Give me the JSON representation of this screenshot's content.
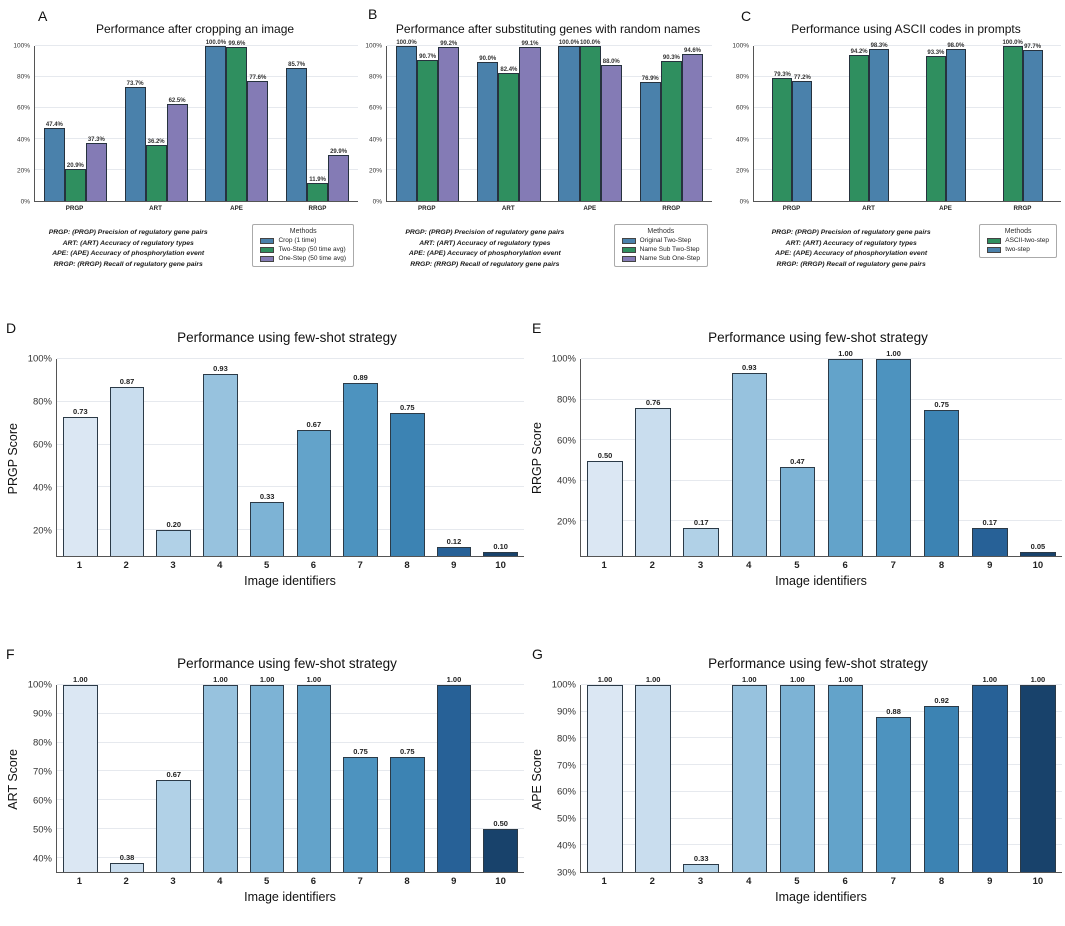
{
  "panels": [
    {
      "letter": "A"
    },
    {
      "letter": "B"
    },
    {
      "letter": "C"
    },
    {
      "letter": "D"
    },
    {
      "letter": "E"
    },
    {
      "letter": "F"
    },
    {
      "letter": "G"
    }
  ],
  "metric_caption_lines": [
    "PRGP: (PRGP) Precision of regulatory gene pairs",
    "ART: (ART) Accuracy of regulatory types",
    "APE: (APE) Accuracy of phosphorylation event",
    "RRGP: (RRGP) Recall of regulatory gene pairs"
  ],
  "chart_data": [
    {
      "id": "A",
      "type": "bar",
      "title": "Performance after cropping an image",
      "categories": [
        "PRGP",
        "ART",
        "APE",
        "RRGP"
      ],
      "series": [
        {
          "name": "Crop (1 time)",
          "color": "#4a81ab",
          "values": [
            47.4,
            73.7,
            100.0,
            85.7
          ]
        },
        {
          "name": "Two-Step (50 time avg)",
          "color": "#2f8f5f",
          "values": [
            20.9,
            36.2,
            99.6,
            11.9
          ]
        },
        {
          "name": "One-Step (50 time avg)",
          "color": "#847bb5",
          "values": [
            37.3,
            62.5,
            77.6,
            29.9
          ]
        }
      ],
      "ylim": [
        0,
        100
      ],
      "yticks": [
        0,
        20,
        40,
        60,
        80,
        100
      ],
      "value_label_format": "pct1",
      "legend_title": "Methods",
      "legend_position": "bottom-right",
      "grid": true
    },
    {
      "id": "B",
      "type": "bar",
      "title": "Performance after substituting genes with random names",
      "categories": [
        "PRGP",
        "ART",
        "APE",
        "RRGP"
      ],
      "series": [
        {
          "name": "Original Two-Step",
          "color": "#4a81ab",
          "values": [
            100.0,
            90.0,
            100.0,
            76.9
          ]
        },
        {
          "name": "Name Sub Two-Step",
          "color": "#2f8f5f",
          "values": [
            90.7,
            82.4,
            100.0,
            90.3
          ]
        },
        {
          "name": "Name Sub One-Step",
          "color": "#847bb5",
          "values": [
            99.2,
            99.1,
            88.0,
            94.6
          ]
        }
      ],
      "ylim": [
        0,
        100
      ],
      "yticks": [
        0,
        20,
        40,
        60,
        80,
        100
      ],
      "value_label_format": "pct1",
      "legend_title": "Methods",
      "legend_position": "bottom-right",
      "grid": true
    },
    {
      "id": "C",
      "type": "bar",
      "title": "Performance using ASCII codes in prompts",
      "categories": [
        "PRGP",
        "ART",
        "APE",
        "RRGP"
      ],
      "series": [
        {
          "name": "ASCII-two-step",
          "color": "#2f8f5f",
          "values": [
            79.3,
            94.2,
            93.3,
            100.0
          ]
        },
        {
          "name": "two-step",
          "color": "#4a81ab",
          "values": [
            77.2,
            98.3,
            98.0,
            97.7
          ]
        }
      ],
      "ylim": [
        0,
        100
      ],
      "yticks": [
        0,
        20,
        40,
        60,
        80,
        100
      ],
      "value_label_format": "pct1",
      "legend_title": "Methods",
      "legend_position": "bottom-right",
      "grid": true
    },
    {
      "id": "D",
      "type": "bar",
      "title": "Performance using few-shot strategy",
      "categories": [
        "1",
        "2",
        "3",
        "4",
        "5",
        "6",
        "7",
        "8",
        "9",
        "10"
      ],
      "values": [
        0.73,
        0.87,
        0.2,
        0.93,
        0.33,
        0.67,
        0.89,
        0.75,
        0.12,
        0.1
      ],
      "bar_colors": [
        "#dbe7f3",
        "#c9ddee",
        "#b1d1e7",
        "#97c2de",
        "#7db3d5",
        "#63a3ca",
        "#4d93bf",
        "#3c83b3",
        "#276197",
        "#18426b"
      ],
      "xlabel": "Image identifiers",
      "ylabel": "PRGP Score",
      "ylim": [
        0.08,
        1.0
      ],
      "yticks": [
        0.2,
        0.4,
        0.6,
        0.8,
        1.0
      ],
      "ytick_frac": true,
      "value_label_format": "dec2",
      "grid": true
    },
    {
      "id": "E",
      "type": "bar",
      "title": "Performance using few-shot strategy",
      "categories": [
        "1",
        "2",
        "3",
        "4",
        "5",
        "6",
        "7",
        "8",
        "9",
        "10"
      ],
      "values": [
        0.5,
        0.76,
        0.17,
        0.93,
        0.47,
        1.0,
        1.0,
        0.75,
        0.17,
        0.05
      ],
      "bar_colors": [
        "#dbe7f3",
        "#c9ddee",
        "#b1d1e7",
        "#97c2de",
        "#7db3d5",
        "#63a3ca",
        "#4d93bf",
        "#3c83b3",
        "#276197",
        "#18426b"
      ],
      "xlabel": "Image identifiers",
      "ylabel": "RRGP Score",
      "ylim": [
        0.03,
        1.0
      ],
      "yticks": [
        0.2,
        0.4,
        0.6,
        0.8,
        1.0
      ],
      "ytick_frac": true,
      "value_label_format": "dec2",
      "grid": true
    },
    {
      "id": "F",
      "type": "bar",
      "title": "Performance using few-shot strategy",
      "categories": [
        "1",
        "2",
        "3",
        "4",
        "5",
        "6",
        "7",
        "8",
        "9",
        "10"
      ],
      "values": [
        1.0,
        0.38,
        0.67,
        1.0,
        1.0,
        1.0,
        0.75,
        0.75,
        1.0,
        0.5
      ],
      "bar_colors": [
        "#dbe7f3",
        "#c9ddee",
        "#b1d1e7",
        "#97c2de",
        "#7db3d5",
        "#63a3ca",
        "#4d93bf",
        "#3c83b3",
        "#276197",
        "#18426b"
      ],
      "xlabel": "Image identifiers",
      "ylabel": "ART Score",
      "ylim": [
        0.35,
        1.0
      ],
      "yticks": [
        0.4,
        0.5,
        0.6,
        0.7,
        0.8,
        0.9,
        1.0
      ],
      "ytick_frac": true,
      "value_label_format": "dec2",
      "grid": true
    },
    {
      "id": "G",
      "type": "bar",
      "title": "Performance using few-shot strategy",
      "categories": [
        "1",
        "2",
        "3",
        "4",
        "5",
        "6",
        "7",
        "8",
        "9",
        "10"
      ],
      "values": [
        1.0,
        1.0,
        0.33,
        1.0,
        1.0,
        1.0,
        0.88,
        0.92,
        1.0,
        1.0
      ],
      "bar_colors": [
        "#dbe7f3",
        "#c9ddee",
        "#b1d1e7",
        "#97c2de",
        "#7db3d5",
        "#63a3ca",
        "#4d93bf",
        "#3c83b3",
        "#276197",
        "#18426b"
      ],
      "xlabel": "Image identifiers",
      "ylabel": "APE Score",
      "ylim": [
        0.3,
        1.0
      ],
      "yticks": [
        0.3,
        0.4,
        0.5,
        0.6,
        0.7,
        0.8,
        0.9,
        1.0
      ],
      "ytick_frac": true,
      "value_label_format": "dec2",
      "grid": true
    }
  ]
}
